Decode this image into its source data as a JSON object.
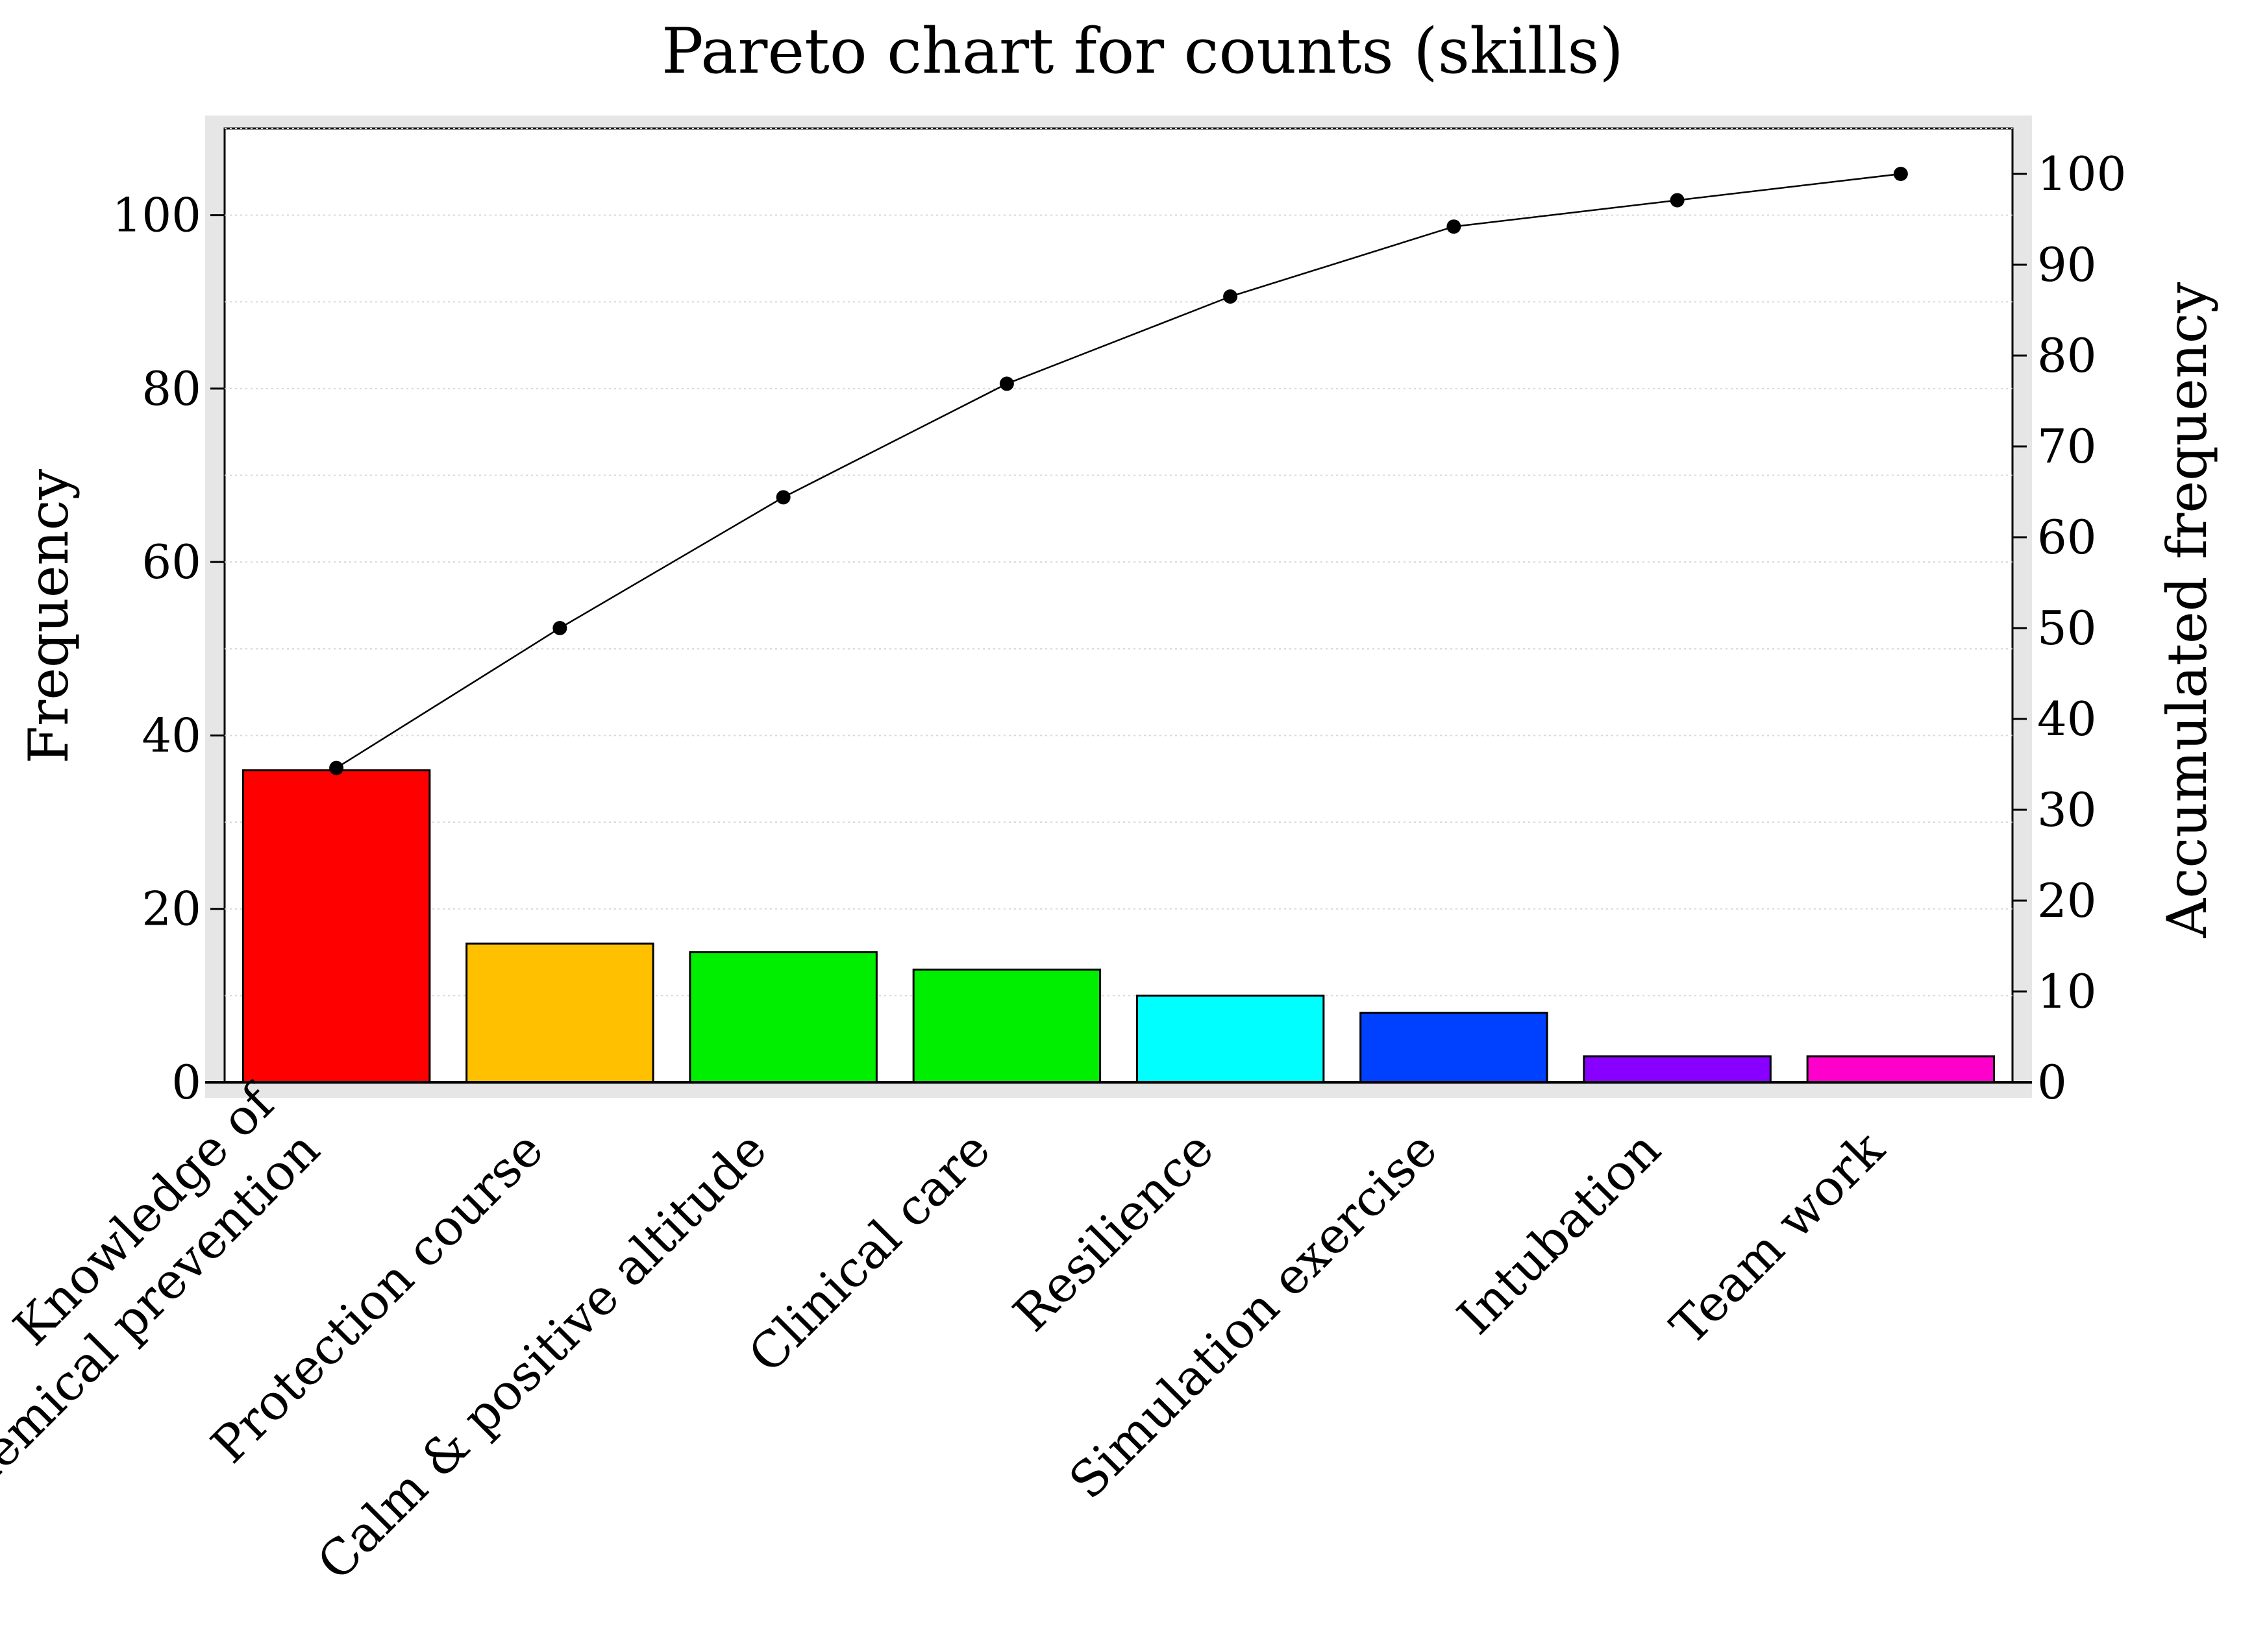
{
  "chart_data": {
    "type": "bar",
    "title": "Pareto chart for counts (skills)",
    "ylabel": "Frequency",
    "y2label": "Accumulated frequency",
    "ylim": [
      0,
      110
    ],
    "y2lim": [
      0,
      105
    ],
    "yticks": [
      "0",
      "20",
      "40",
      "60",
      "80",
      "100"
    ],
    "y2ticks": [
      "0",
      "10",
      "20",
      "30",
      "40",
      "50",
      "60",
      "70",
      "80",
      "90",
      "100"
    ],
    "grid": true,
    "categories": [
      [
        "Knowledge of",
        "epidemical prevention"
      ],
      [
        "Protection course"
      ],
      [
        "Calm & positive altitude"
      ],
      [
        "Clinical care"
      ],
      [
        "Resilience"
      ],
      [
        "Simulation exercise"
      ],
      [
        "Intubation"
      ],
      [
        "Team work"
      ]
    ],
    "series": [
      {
        "type": "bar",
        "axis": "left",
        "values": [
          36,
          16,
          15,
          13,
          10,
          8,
          3,
          3
        ]
      },
      {
        "type": "line",
        "axis": "right",
        "values": [
          34.6,
          50,
          64.4,
          76.9,
          86.5,
          94.2,
          97.1,
          100
        ]
      }
    ],
    "colors": [
      "#ff0000",
      "#ffc000",
      "#00ee00",
      "#00ee00",
      "#00ffff",
      "#0040ff",
      "#8800ff",
      "#ff00cc"
    ]
  }
}
